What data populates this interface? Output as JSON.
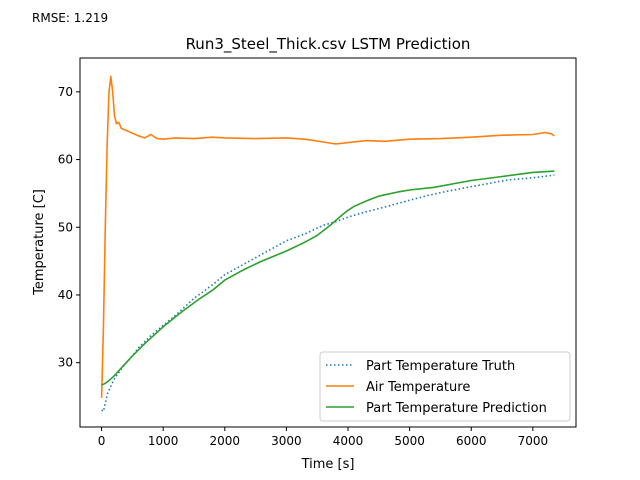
{
  "header": {
    "rmse_text": "RMSE: 1.219"
  },
  "chart_data": {
    "type": "line",
    "title": "Run3_Steel_Thick.csv LSTM Prediction",
    "xlabel": "Time [s]",
    "ylabel": "Temperature [C]",
    "xlim": [
      -350,
      7700
    ],
    "ylim": [
      20.5,
      75.0
    ],
    "xticks": [
      0,
      1000,
      2000,
      3000,
      4000,
      5000,
      6000,
      7000
    ],
    "yticks": [
      30,
      40,
      50,
      60,
      70
    ],
    "legend_position": "lower right",
    "grid": false,
    "series": [
      {
        "name": "Part Temperature Truth",
        "color": "#1f77b4",
        "style": "dotted",
        "x": [
          0,
          30,
          60,
          100,
          150,
          200,
          300,
          400,
          500,
          600,
          800,
          1000,
          1200,
          1500,
          1800,
          2000,
          2300,
          2600,
          3000,
          3300,
          3600,
          3800,
          4000,
          4300,
          4600,
          5000,
          5300,
          5600,
          6000,
          6300,
          6600,
          7000,
          7350
        ],
        "y": [
          23.0,
          22.8,
          24.0,
          25.5,
          26.5,
          27.5,
          28.8,
          30.0,
          31.0,
          32.2,
          34.0,
          35.5,
          37.0,
          39.5,
          41.5,
          43.0,
          44.5,
          46.0,
          48.0,
          49.0,
          50.3,
          50.8,
          51.5,
          52.3,
          53.0,
          54.0,
          54.7,
          55.3,
          56.0,
          56.5,
          57.0,
          57.3,
          57.7
        ]
      },
      {
        "name": "Air Temperature",
        "color": "#ff7f0e",
        "style": "solid",
        "x": [
          0,
          30,
          60,
          90,
          120,
          150,
          180,
          210,
          240,
          280,
          320,
          400,
          500,
          600,
          700,
          800,
          900,
          1000,
          1200,
          1500,
          1800,
          2000,
          2500,
          3000,
          3300,
          3600,
          3800,
          4000,
          4300,
          4600,
          5000,
          5500,
          6000,
          6500,
          7000,
          7200,
          7300,
          7350
        ],
        "y": [
          24.8,
          35.0,
          50.0,
          62.0,
          70.0,
          72.3,
          70.0,
          66.5,
          65.3,
          65.5,
          64.6,
          64.3,
          63.9,
          63.5,
          63.2,
          63.7,
          63.1,
          63.0,
          63.2,
          63.1,
          63.3,
          63.2,
          63.1,
          63.2,
          63.0,
          62.6,
          62.3,
          62.5,
          62.8,
          62.7,
          63.0,
          63.1,
          63.3,
          63.6,
          63.7,
          64.0,
          63.8,
          63.5
        ]
      },
      {
        "name": "Part Temperature Prediction",
        "color": "#2ca02c",
        "style": "solid",
        "x": [
          0,
          50,
          100,
          200,
          300,
          500,
          700,
          1000,
          1300,
          1600,
          1800,
          2000,
          2300,
          2600,
          3000,
          3300,
          3500,
          3700,
          3900,
          4000,
          4100,
          4300,
          4500,
          4800,
          5000,
          5400,
          5700,
          6000,
          6500,
          7000,
          7350
        ],
        "y": [
          26.7,
          26.9,
          27.2,
          28.0,
          29.0,
          31.0,
          32.8,
          35.3,
          37.5,
          39.5,
          40.7,
          42.2,
          43.7,
          45.0,
          46.5,
          47.8,
          48.8,
          50.2,
          51.8,
          52.5,
          53.1,
          53.9,
          54.6,
          55.2,
          55.5,
          55.9,
          56.4,
          56.9,
          57.5,
          58.1,
          58.3
        ]
      }
    ]
  }
}
